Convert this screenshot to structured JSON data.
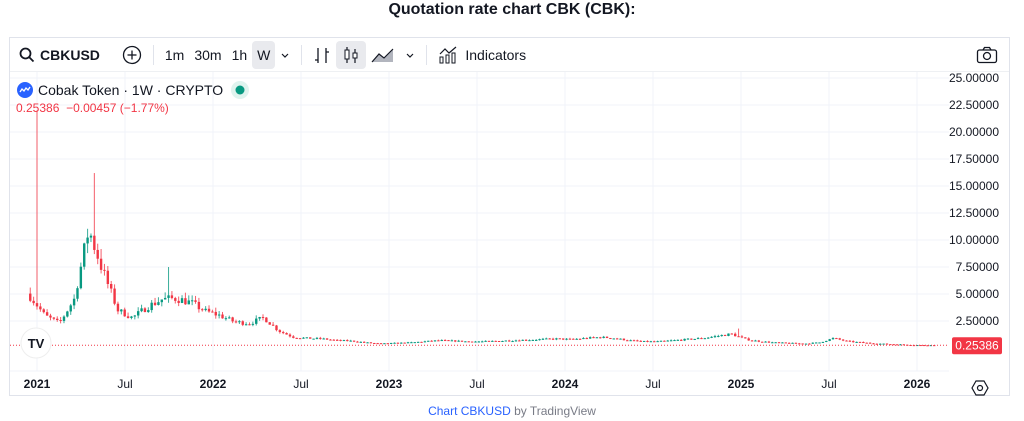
{
  "page_title": "Quotation rate chart CBK (CBK):",
  "toolbar": {
    "symbol": "CBKUSD",
    "intervals": [
      "1m",
      "30m",
      "1h",
      "W"
    ],
    "active_interval": "W",
    "indicators_label": "Indicators"
  },
  "legend": {
    "name": "Cobak Token · 1W · CRYPTO",
    "price": "0.25386",
    "change": "−0.00457 (−1.77%)"
  },
  "footer": {
    "link": "Chart CBKUSD",
    "suffix": " by TradingView"
  },
  "colors": {
    "up": "#089981",
    "down": "#f23645",
    "accent": "#2962ff"
  },
  "chart_data": {
    "type": "candlestick",
    "y_ticks": [
      "25.00000",
      "22.50000",
      "20.00000",
      "17.50000",
      "15.00000",
      "12.50000",
      "10.00000",
      "7.50000",
      "5.00000",
      "2.50000"
    ],
    "ylim": [
      0,
      25
    ],
    "x_ticks": [
      "2021",
      "Jul",
      "2022",
      "Jul",
      "2023",
      "Jul",
      "2024",
      "Jul",
      "2025",
      "Jul",
      "2026"
    ],
    "last_price": "0.25386",
    "grid": true,
    "start_month": "2020-12",
    "monthly_closes": [
      4.8,
      3.0,
      2.3,
      4.5,
      11,
      7,
      3.5,
      2.8,
      3.8,
      4.5,
      4.6,
      4.2,
      3.4,
      3.0,
      2.4,
      2.3,
      2.8,
      1.6,
      1.0,
      0.9,
      0.85,
      0.7,
      0.65,
      0.5,
      0.4,
      0.45,
      0.5,
      0.6,
      0.7,
      0.65,
      0.6,
      0.6,
      0.65,
      0.7,
      0.75,
      0.8,
      0.85,
      0.8,
      0.9,
      1.0,
      0.9,
      0.7,
      0.6,
      0.6,
      0.7,
      0.8,
      0.9,
      1.1,
      1.3,
      0.8,
      0.6,
      0.5,
      0.45,
      0.4,
      0.5,
      0.9,
      0.6,
      0.5,
      0.4,
      0.35,
      0.3,
      0.26,
      0.254
    ],
    "notable_highs": [
      {
        "month": "2020-12",
        "high": 22
      },
      {
        "month": "2021-04",
        "high": 16.2
      },
      {
        "month": "2021-09",
        "high": 7.5
      },
      {
        "month": "2024-12",
        "high": 1.8
      }
    ]
  }
}
